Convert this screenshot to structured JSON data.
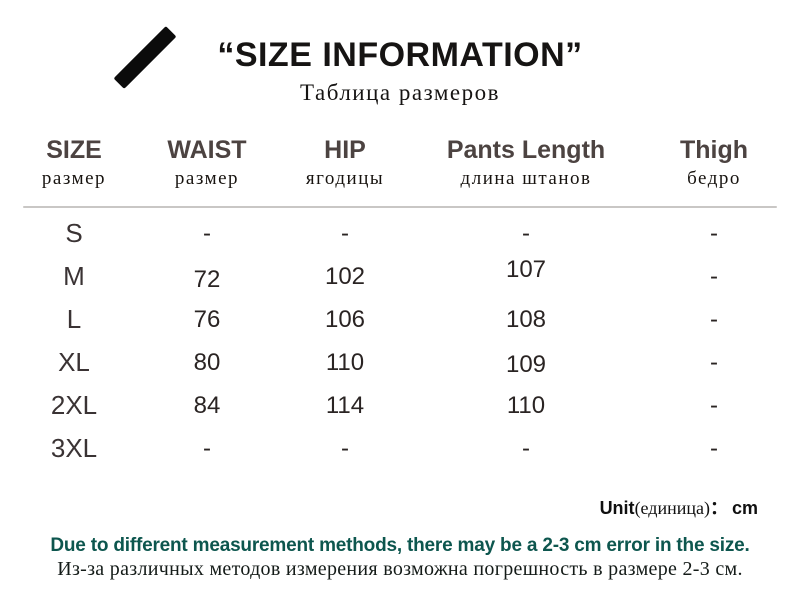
{
  "title": {
    "main": "“SIZE INFORMATION”",
    "subtitle": "Таблица размеров"
  },
  "table": {
    "columns": [
      {
        "en": "SIZE",
        "ru": "размер"
      },
      {
        "en": "WAIST",
        "ru": "размер"
      },
      {
        "en": "HIP",
        "ru": "ягодицы"
      },
      {
        "en": "Pants Length",
        "ru": "длина штанов"
      },
      {
        "en": "Thigh",
        "ru": "бедро"
      }
    ],
    "rows": [
      {
        "size": "S",
        "waist": "-",
        "hip": "-",
        "pants_length": "-",
        "thigh": "-"
      },
      {
        "size": "M",
        "waist": "72",
        "hip": "102",
        "pants_length": "107",
        "thigh": "-"
      },
      {
        "size": "L",
        "waist": "76",
        "hip": "106",
        "pants_length": "108",
        "thigh": "-"
      },
      {
        "size": "XL",
        "waist": "80",
        "hip": "110",
        "pants_length": "109",
        "thigh": "-"
      },
      {
        "size": "2XL",
        "waist": "84",
        "hip": "114",
        "pants_length": "110",
        "thigh": "-"
      },
      {
        "size": "3XL",
        "waist": "-",
        "hip": "-",
        "pants_length": "-",
        "thigh": "-"
      }
    ]
  },
  "unit": {
    "label_en": "Unit",
    "label_ru": "(единица)",
    "colon": "：",
    "value": "cm"
  },
  "footer": {
    "en": "Due to different measurement methods, there may be a 2-3 cm error in the size.",
    "ru": "Из-за различных методов измерения возможна погрешность в размере 2-3 см."
  },
  "colors": {
    "header_text": "#4c4341",
    "body_text": "#2a2423",
    "footer_accent": "#0d564e",
    "divider": "#c9c7c5",
    "brush": "#0b0b0b"
  }
}
